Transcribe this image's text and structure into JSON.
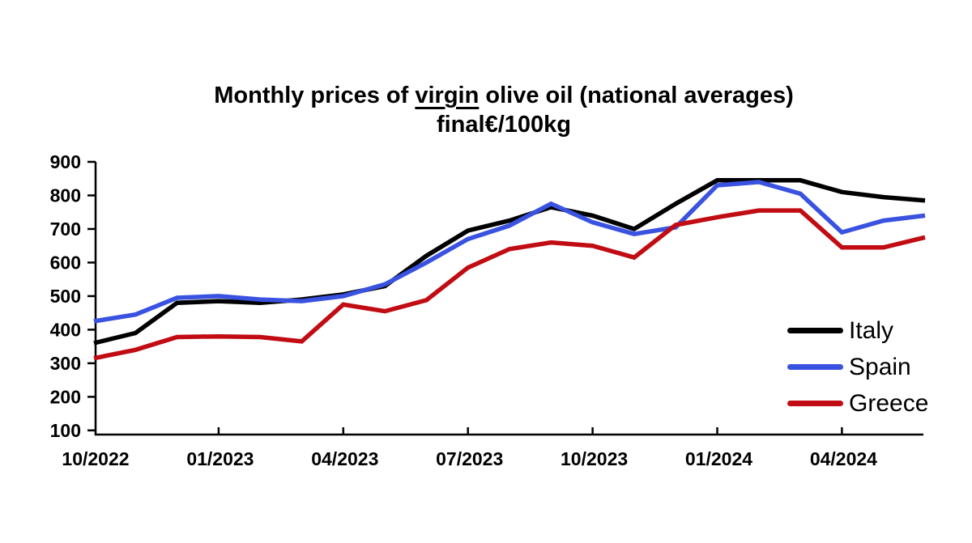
{
  "title": {
    "prefix": "Monthly prices of ",
    "underlined": "virgin",
    "suffix": " olive oil (national averages)",
    "line2": "€/100kg"
  },
  "chart_data": {
    "type": "line",
    "title": "Monthly prices of virgin olive oil (national averages)",
    "subtitle": "€/100kg",
    "xlabel": "",
    "ylabel": "€/100kg",
    "ylim": [
      100,
      900
    ],
    "grid": false,
    "legend_position": "right-middle",
    "x": [
      "10/2022",
      "11/2022",
      "12/2022",
      "01/2023",
      "02/2023",
      "03/2023",
      "04/2023",
      "05/2023",
      "06/2023",
      "07/2023",
      "08/2023",
      "09/2023",
      "10/2023",
      "11/2023",
      "12/2023",
      "01/2024",
      "02/2024",
      "03/2024",
      "04/2024",
      "05/2024",
      "06/2024"
    ],
    "y_ticks": [
      900,
      800,
      700,
      600,
      500,
      400,
      300,
      200,
      100
    ],
    "x_ticks": [
      {
        "label": "10/2022",
        "month_index": 0
      },
      {
        "label": "01/2023",
        "month_index": 3
      },
      {
        "label": "04/2023",
        "month_index": 6
      },
      {
        "label": "07/2023",
        "month_index": 9
      },
      {
        "label": "10/2023",
        "month_index": 12
      },
      {
        "label": "01/2024",
        "month_index": 15
      },
      {
        "label": "04/2024",
        "month_index": 18
      }
    ],
    "series": [
      {
        "name": "Italy",
        "color": "#000000",
        "values": [
          360,
          390,
          480,
          485,
          480,
          490,
          505,
          530,
          620,
          695,
          725,
          765,
          740,
          700,
          775,
          845,
          845,
          845,
          810,
          795,
          785
        ]
      },
      {
        "name": "Spain",
        "color": "#3A52E0",
        "values": [
          425,
          445,
          495,
          500,
          490,
          485,
          500,
          535,
          600,
          670,
          710,
          775,
          720,
          685,
          705,
          830,
          840,
          805,
          690,
          725,
          740
        ]
      },
      {
        "name": "Greece",
        "color": "#C00C12",
        "values": [
          315,
          340,
          378,
          380,
          378,
          365,
          475,
          455,
          488,
          585,
          640,
          660,
          650,
          615,
          712,
          735,
          755,
          755,
          645,
          645,
          675
        ]
      }
    ]
  }
}
